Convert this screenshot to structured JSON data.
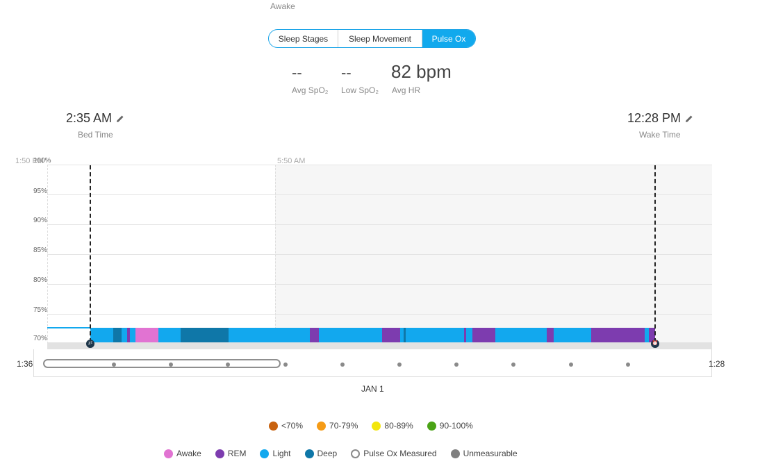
{
  "header": {
    "top_label": "Awake"
  },
  "tabs": [
    {
      "label": "Sleep Stages",
      "active": false
    },
    {
      "label": "Sleep Movement",
      "active": false
    },
    {
      "label": "Pulse Ox",
      "active": true
    }
  ],
  "stats": {
    "avg_spo2": {
      "value": "--",
      "label": "Avg SpO₂"
    },
    "low_spo2": {
      "value": "--",
      "label": "Low SpO₂"
    },
    "avg_hr": {
      "value": "82 bpm",
      "label": "Avg HR"
    }
  },
  "bed_time": {
    "value": "2:35 AM",
    "label": "Bed Time"
  },
  "wake_time": {
    "value": "12:28 PM",
    "label": "Wake Time"
  },
  "chart": {
    "y_ticks": [
      "100%",
      "95%",
      "90%",
      "85%",
      "80%",
      "75%",
      "70%"
    ],
    "time_label_left": "1:50 PM",
    "time_label_mid": "5:50 AM",
    "colors": {
      "awake": "#e173d2",
      "rem": "#7d3caf",
      "light": "#12a8ee",
      "deep": "#0f77a8"
    },
    "stages": [
      {
        "stage": "light",
        "start": 0.0,
        "end": 0.04
      },
      {
        "stage": "deep",
        "start": 0.04,
        "end": 0.055
      },
      {
        "stage": "light",
        "start": 0.055,
        "end": 0.065
      },
      {
        "stage": "rem",
        "start": 0.065,
        "end": 0.07
      },
      {
        "stage": "light",
        "start": 0.07,
        "end": 0.08
      },
      {
        "stage": "awake",
        "start": 0.08,
        "end": 0.12
      },
      {
        "stage": "light",
        "start": 0.12,
        "end": 0.16
      },
      {
        "stage": "deep",
        "start": 0.16,
        "end": 0.245
      },
      {
        "stage": "light",
        "start": 0.245,
        "end": 0.389
      },
      {
        "stage": "rem",
        "start": 0.389,
        "end": 0.405
      },
      {
        "stage": "light",
        "start": 0.405,
        "end": 0.517
      },
      {
        "stage": "rem",
        "start": 0.517,
        "end": 0.549
      },
      {
        "stage": "light",
        "start": 0.549,
        "end": 0.555
      },
      {
        "stage": "deep",
        "start": 0.555,
        "end": 0.558
      },
      {
        "stage": "light",
        "start": 0.558,
        "end": 0.662
      },
      {
        "stage": "rem",
        "start": 0.662,
        "end": 0.665
      },
      {
        "stage": "light",
        "start": 0.665,
        "end": 0.677
      },
      {
        "stage": "rem",
        "start": 0.677,
        "end": 0.717
      },
      {
        "stage": "light",
        "start": 0.717,
        "end": 0.808
      },
      {
        "stage": "rem",
        "start": 0.808,
        "end": 0.821
      },
      {
        "stage": "light",
        "start": 0.821,
        "end": 0.887
      },
      {
        "stage": "rem",
        "start": 0.887,
        "end": 0.982
      },
      {
        "stage": "light",
        "start": 0.982,
        "end": 0.989
      },
      {
        "stage": "rem",
        "start": 0.989,
        "end": 1.0
      }
    ]
  },
  "timeline": {
    "left_label": "1:36",
    "right_label": "1:28",
    "date_label": "JAN 1"
  },
  "legend_spo2": [
    {
      "label": "<70%",
      "color": "#c8620f"
    },
    {
      "label": "70-79%",
      "color": "#f59b16"
    },
    {
      "label": "80-89%",
      "color": "#f3e60d"
    },
    {
      "label": "90-100%",
      "color": "#4aa316"
    }
  ],
  "legend_stages": [
    {
      "label": "Awake",
      "color": "#e173d2"
    },
    {
      "label": "REM",
      "color": "#7d3caf"
    },
    {
      "label": "Light",
      "color": "#12a8ee"
    },
    {
      "label": "Deep",
      "color": "#0f77a8"
    },
    {
      "label": "Pulse Ox Measured",
      "color": "#ffffff"
    },
    {
      "label": "Unmeasurable",
      "color": "#7f7f7f"
    }
  ]
}
